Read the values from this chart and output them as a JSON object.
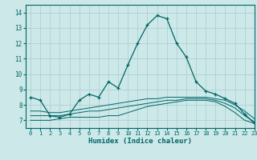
{
  "title": "",
  "xlabel": "Humidex (Indice chaleur)",
  "ylabel": "",
  "xlim": [
    -0.5,
    23
  ],
  "ylim": [
    6.5,
    14.5
  ],
  "background_color": "#cde8e8",
  "grid_color": "#aacccc",
  "line_color": "#006666",
  "x": [
    0,
    1,
    2,
    3,
    4,
    5,
    6,
    7,
    8,
    9,
    10,
    11,
    12,
    13,
    14,
    15,
    16,
    17,
    18,
    19,
    20,
    21,
    22,
    23
  ],
  "main_line": [
    8.5,
    8.3,
    7.3,
    7.2,
    7.4,
    8.3,
    8.7,
    8.5,
    9.5,
    9.1,
    10.6,
    12.0,
    13.2,
    13.8,
    13.6,
    12.0,
    11.1,
    9.5,
    8.9,
    8.7,
    8.4,
    8.1,
    7.4,
    6.8
  ],
  "flat_line1": [
    7.0,
    7.0,
    7.0,
    7.1,
    7.2,
    7.2,
    7.2,
    7.2,
    7.3,
    7.3,
    7.5,
    7.7,
    7.9,
    8.0,
    8.1,
    8.2,
    8.3,
    8.3,
    8.3,
    8.2,
    7.9,
    7.5,
    7.0,
    6.8
  ],
  "flat_line2": [
    7.3,
    7.3,
    7.3,
    7.3,
    7.4,
    7.5,
    7.6,
    7.6,
    7.7,
    7.8,
    7.9,
    8.0,
    8.1,
    8.2,
    8.3,
    8.3,
    8.4,
    8.4,
    8.4,
    8.3,
    8.1,
    7.8,
    7.3,
    6.9
  ],
  "flat_line3": [
    7.6,
    7.6,
    7.5,
    7.5,
    7.6,
    7.7,
    7.8,
    7.9,
    8.0,
    8.1,
    8.2,
    8.3,
    8.4,
    8.4,
    8.5,
    8.5,
    8.5,
    8.5,
    8.5,
    8.4,
    8.3,
    8.0,
    7.6,
    7.1
  ],
  "yticks": [
    7,
    8,
    9,
    10,
    11,
    12,
    13,
    14
  ],
  "xticks": [
    0,
    1,
    2,
    3,
    4,
    5,
    6,
    7,
    8,
    9,
    10,
    11,
    12,
    13,
    14,
    15,
    16,
    17,
    18,
    19,
    20,
    21,
    22,
    23
  ]
}
